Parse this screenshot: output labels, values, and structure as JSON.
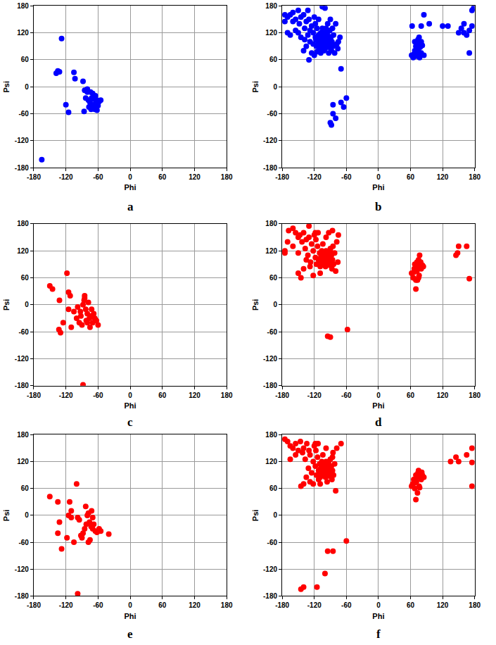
{
  "chart_data": [
    {
      "type": "scatter",
      "title": "a",
      "x_label": "Phi",
      "y_label": "Psi",
      "color": "#0000ff",
      "grid": true,
      "xlim": [
        -180,
        180
      ],
      "ylim": [
        -180,
        180
      ],
      "xticks": [
        -180,
        -120,
        -60,
        0,
        60,
        120,
        180
      ],
      "yticks": [
        -180,
        -120,
        -60,
        0,
        60,
        120,
        180
      ],
      "x": [
        -165,
        -128,
        -135,
        -132,
        -138,
        -105,
        -103,
        -120,
        -115,
        -88,
        -85,
        -80,
        -83,
        -78,
        -75,
        -72,
        -70,
        -68,
        -66,
        -64,
        -62,
        -60,
        -58,
        -55,
        -70,
        -65,
        -73,
        -77,
        -86,
        -62,
        -67,
        -80,
        -74
      ],
      "values": [
        -162,
        107,
        35,
        33,
        30,
        32,
        18,
        -40,
        -57,
        12,
        -8,
        -12,
        -25,
        -30,
        -35,
        -25,
        -40,
        -45,
        -50,
        -38,
        -30,
        -42,
        -33,
        -30,
        -15,
        -20,
        -50,
        -45,
        -55,
        -52,
        -28,
        -5,
        -12
      ]
    },
    {
      "type": "scatter",
      "title": "b",
      "x_label": "Phi",
      "y_label": "Psi",
      "color": "#0000ff",
      "grid": true,
      "xlim": [
        -180,
        180
      ],
      "ylim": [
        -180,
        180
      ],
      "xticks": [
        -180,
        -120,
        -60,
        0,
        60,
        120,
        180
      ],
      "yticks": [
        -180,
        -120,
        -60,
        0,
        60,
        120,
        180
      ],
      "x": [
        -175,
        -170,
        -165,
        -160,
        -155,
        -150,
        -148,
        -145,
        -140,
        -138,
        -135,
        -132,
        -130,
        -128,
        -125,
        -122,
        -120,
        -118,
        -116,
        -115,
        -113,
        -112,
        -110,
        -110,
        -108,
        -107,
        -106,
        -105,
        -104,
        -103,
        -102,
        -101,
        -100,
        -100,
        -99,
        -98,
        -97,
        -96,
        -95,
        -94,
        -93,
        -92,
        -91,
        -90,
        -89,
        -88,
        -87,
        -86,
        -85,
        -84,
        -82,
        -80,
        -78,
        -76,
        -75,
        -72,
        -120,
        -125,
        -130,
        -135,
        -140,
        -145,
        -150,
        -155,
        -160,
        -118,
        -112,
        -108,
        -105,
        -102,
        -115,
        -95,
        -90,
        -100,
        -105,
        -132,
        -165,
        -170,
        -175,
        -122,
        -117,
        -111,
        -109,
        -98,
        -93,
        -128,
        -138,
        -90,
        -88,
        -85,
        -80,
        -85,
        -70,
        -65,
        -60,
        -70,
        62,
        65,
        66,
        68,
        70,
        72,
        73,
        75,
        75,
        76,
        78,
        80,
        80,
        82,
        85,
        63,
        70,
        77,
        74,
        68,
        85,
        80,
        95,
        120,
        130,
        150,
        155,
        160,
        165,
        170,
        175,
        178,
        170,
        175,
        160
      ],
      "values": [
        145,
        155,
        160,
        165,
        150,
        170,
        140,
        155,
        160,
        130,
        145,
        115,
        150,
        100,
        135,
        120,
        155,
        110,
        90,
        130,
        100,
        115,
        85,
        105,
        95,
        120,
        110,
        100,
        90,
        115,
        105,
        95,
        110,
        85,
        120,
        100,
        92,
        108,
        115,
        98,
        88,
        105,
        125,
        95,
        110,
        80,
        100,
        130,
        90,
        115,
        75,
        140,
        95,
        85,
        100,
        110,
        70,
        75,
        60,
        90,
        80,
        110,
        120,
        125,
        145,
        140,
        150,
        75,
        130,
        80,
        78,
        140,
        150,
        175,
        178,
        170,
        115,
        120,
        160,
        95,
        105,
        92,
        118,
        130,
        75,
        125,
        105,
        -80,
        -85,
        -60,
        -70,
        -40,
        -35,
        -45,
        -25,
        40,
        70,
        65,
        72,
        80,
        90,
        68,
        85,
        95,
        78,
        110,
        88,
        100,
        75,
        92,
        70,
        135,
        75,
        65,
        105,
        100,
        160,
        135,
        140,
        135,
        135,
        120,
        130,
        140,
        115,
        125,
        170,
        175,
        75,
        135,
        120
      ]
    },
    {
      "type": "scatter",
      "title": "c",
      "x_label": "Phi",
      "y_label": "Psi",
      "color": "#ff0000",
      "grid": true,
      "xlim": [
        -180,
        180
      ],
      "ylim": [
        -180,
        180
      ],
      "xticks": [
        -180,
        -120,
        -60,
        0,
        60,
        120,
        180
      ],
      "yticks": [
        -180,
        -120,
        -60,
        0,
        60,
        120,
        180
      ],
      "x": [
        -150,
        -145,
        -132,
        -133,
        -130,
        -125,
        -118,
        -115,
        -112,
        -115,
        -110,
        -105,
        -100,
        -98,
        -95,
        -92,
        -90,
        -88,
        -86,
        -85,
        -83,
        -82,
        -80,
        -78,
        -76,
        -75,
        -73,
        -72,
        -70,
        -68,
        -66,
        -63,
        -60,
        -88,
        -85,
        -80,
        -93
      ],
      "values": [
        42,
        35,
        10,
        -55,
        -62,
        -40,
        70,
        28,
        20,
        -10,
        -50,
        -15,
        -30,
        -5,
        -40,
        -25,
        -45,
        0,
        10,
        20,
        -10,
        -35,
        -20,
        5,
        -30,
        -50,
        -25,
        -10,
        -40,
        -20,
        -30,
        -35,
        -45,
        -178,
        15,
        -40,
        -15
      ]
    },
    {
      "type": "scatter",
      "title": "d",
      "x_label": "Phi",
      "y_label": "Psi",
      "color": "#ff0000",
      "grid": true,
      "xlim": [
        -180,
        180
      ],
      "ylim": [
        -180,
        180
      ],
      "xticks": [
        -180,
        -120,
        -60,
        0,
        60,
        120,
        180
      ],
      "yticks": [
        -180,
        -120,
        -60,
        0,
        60,
        120,
        180
      ],
      "x": [
        -175,
        -168,
        -160,
        -155,
        -150,
        -147,
        -143,
        -140,
        -137,
        -135,
        -132,
        -130,
        -127,
        -125,
        -122,
        -120,
        -118,
        -116,
        -114,
        -112,
        -110,
        -109,
        -108,
        -107,
        -106,
        -105,
        -104,
        -103,
        -102,
        -101,
        -100,
        -100,
        -99,
        -98,
        -97,
        -96,
        -95,
        -94,
        -93,
        -92,
        -91,
        -90,
        -89,
        -88,
        -87,
        -86,
        -85,
        -84,
        -82,
        -80,
        -78,
        -76,
        -75,
        -140,
        -145,
        -150,
        -135,
        -128,
        -122,
        -117,
        -113,
        -109,
        -104,
        -98,
        -93,
        -90,
        -86,
        -118,
        -130,
        -150,
        -160,
        -170,
        -175,
        -95,
        -90,
        -58,
        62,
        65,
        67,
        68,
        70,
        72,
        72,
        74,
        75,
        76,
        77,
        78,
        80,
        82,
        84,
        70,
        73,
        66,
        75,
        79,
        145,
        148,
        150,
        165,
        170
      ],
      "values": [
        115,
        165,
        170,
        160,
        150,
        155,
        140,
        160,
        125,
        145,
        110,
        150,
        95,
        135,
        120,
        155,
        105,
        90,
        130,
        100,
        115,
        85,
        105,
        95,
        120,
        110,
        100,
        90,
        115,
        105,
        95,
        110,
        85,
        120,
        100,
        92,
        108,
        115,
        98,
        88,
        105,
        125,
        95,
        110,
        80,
        100,
        130,
        90,
        115,
        75,
        140,
        95,
        155,
        80,
        60,
        70,
        100,
        85,
        65,
        145,
        160,
        70,
        135,
        150,
        160,
        120,
        165,
        160,
        175,
        115,
        130,
        140,
        120,
        -70,
        -72,
        -55,
        70,
        60,
        80,
        90,
        55,
        95,
        75,
        85,
        100,
        65,
        110,
        90,
        80,
        88,
        85,
        35,
        55,
        72,
        60,
        95,
        110,
        115,
        130,
        130,
        58
      ]
    },
    {
      "type": "scatter",
      "title": "e",
      "x_label": "Phi",
      "y_label": "Psi",
      "color": "#ff0000",
      "grid": true,
      "xlim": [
        -180,
        180
      ],
      "ylim": [
        -180,
        180
      ],
      "xticks": [
        -180,
        -120,
        -60,
        0,
        60,
        120,
        180
      ],
      "yticks": [
        -180,
        -120,
        -60,
        0,
        60,
        120,
        180
      ],
      "x": [
        -150,
        -135,
        -135,
        -132,
        -128,
        -118,
        -115,
        -113,
        -110,
        -110,
        -105,
        -100,
        -98,
        -95,
        -92,
        -90,
        -88,
        -85,
        -83,
        -80,
        -78,
        -76,
        -75,
        -73,
        -72,
        -70,
        -68,
        -65,
        -62,
        -58,
        -55,
        -40,
        -98,
        -82,
        -78,
        -70
      ],
      "values": [
        42,
        30,
        -40,
        -15,
        -75,
        -50,
        0,
        30,
        -5,
        10,
        -60,
        70,
        -5,
        -10,
        -45,
        -50,
        -40,
        -30,
        20,
        0,
        5,
        -15,
        -55,
        -25,
        10,
        -30,
        -20,
        -35,
        -38,
        -30,
        -35,
        -42,
        -175,
        -20,
        -60,
        -5
      ]
    },
    {
      "type": "scatter",
      "title": "f",
      "x_label": "Phi",
      "y_label": "Psi",
      "color": "#ff0000",
      "grid": true,
      "xlim": [
        -180,
        180
      ],
      "ylim": [
        -180,
        180
      ],
      "xticks": [
        -180,
        -120,
        -60,
        0,
        60,
        120,
        180
      ],
      "yticks": [
        -180,
        -120,
        -60,
        0,
        60,
        120,
        180
      ],
      "x": [
        -175,
        -170,
        -165,
        -160,
        -155,
        -150,
        -146,
        -142,
        -140,
        -137,
        -134,
        -131,
        -128,
        -125,
        -122,
        -120,
        -118,
        -116,
        -114,
        -112,
        -110,
        -109,
        -108,
        -107,
        -106,
        -105,
        -104,
        -103,
        -102,
        -101,
        -100,
        -100,
        -99,
        -98,
        -97,
        -96,
        -95,
        -94,
        -93,
        -92,
        -91,
        -90,
        -89,
        -88,
        -87,
        -86,
        -85,
        -84,
        -82,
        -80,
        -78,
        -70,
        -140,
        -145,
        -135,
        -128,
        -122,
        -117,
        -113,
        -109,
        -104,
        -98,
        -93,
        -86,
        -118,
        -130,
        -155,
        -165,
        -112,
        -96,
        -145,
        -140,
        -115,
        -100,
        -95,
        -85,
        -60,
        62,
        64,
        66,
        68,
        70,
        71,
        72,
        74,
        75,
        76,
        78,
        79,
        80,
        82,
        85,
        70,
        73,
        67,
        77,
        81,
        135,
        145,
        150,
        165,
        175,
        175,
        175
      ],
      "values": [
        170,
        165,
        125,
        150,
        160,
        145,
        165,
        140,
        150,
        125,
        160,
        105,
        135,
        95,
        120,
        155,
        110,
        90,
        130,
        100,
        115,
        85,
        105,
        95,
        120,
        110,
        100,
        90,
        115,
        105,
        95,
        110,
        85,
        120,
        100,
        92,
        108,
        115,
        98,
        88,
        105,
        125,
        95,
        110,
        80,
        100,
        140,
        90,
        115,
        55,
        150,
        160,
        70,
        65,
        85,
        75,
        70,
        145,
        160,
        70,
        135,
        150,
        120,
        130,
        160,
        145,
        135,
        155,
        80,
        75,
        -165,
        -160,
        -160,
        -130,
        -80,
        -80,
        -57,
        65,
        70,
        80,
        60,
        90,
        75,
        85,
        95,
        100,
        65,
        88,
        92,
        80,
        90,
        85,
        35,
        50,
        72,
        62,
        96,
        120,
        130,
        120,
        135,
        150,
        118,
        65
      ]
    }
  ]
}
